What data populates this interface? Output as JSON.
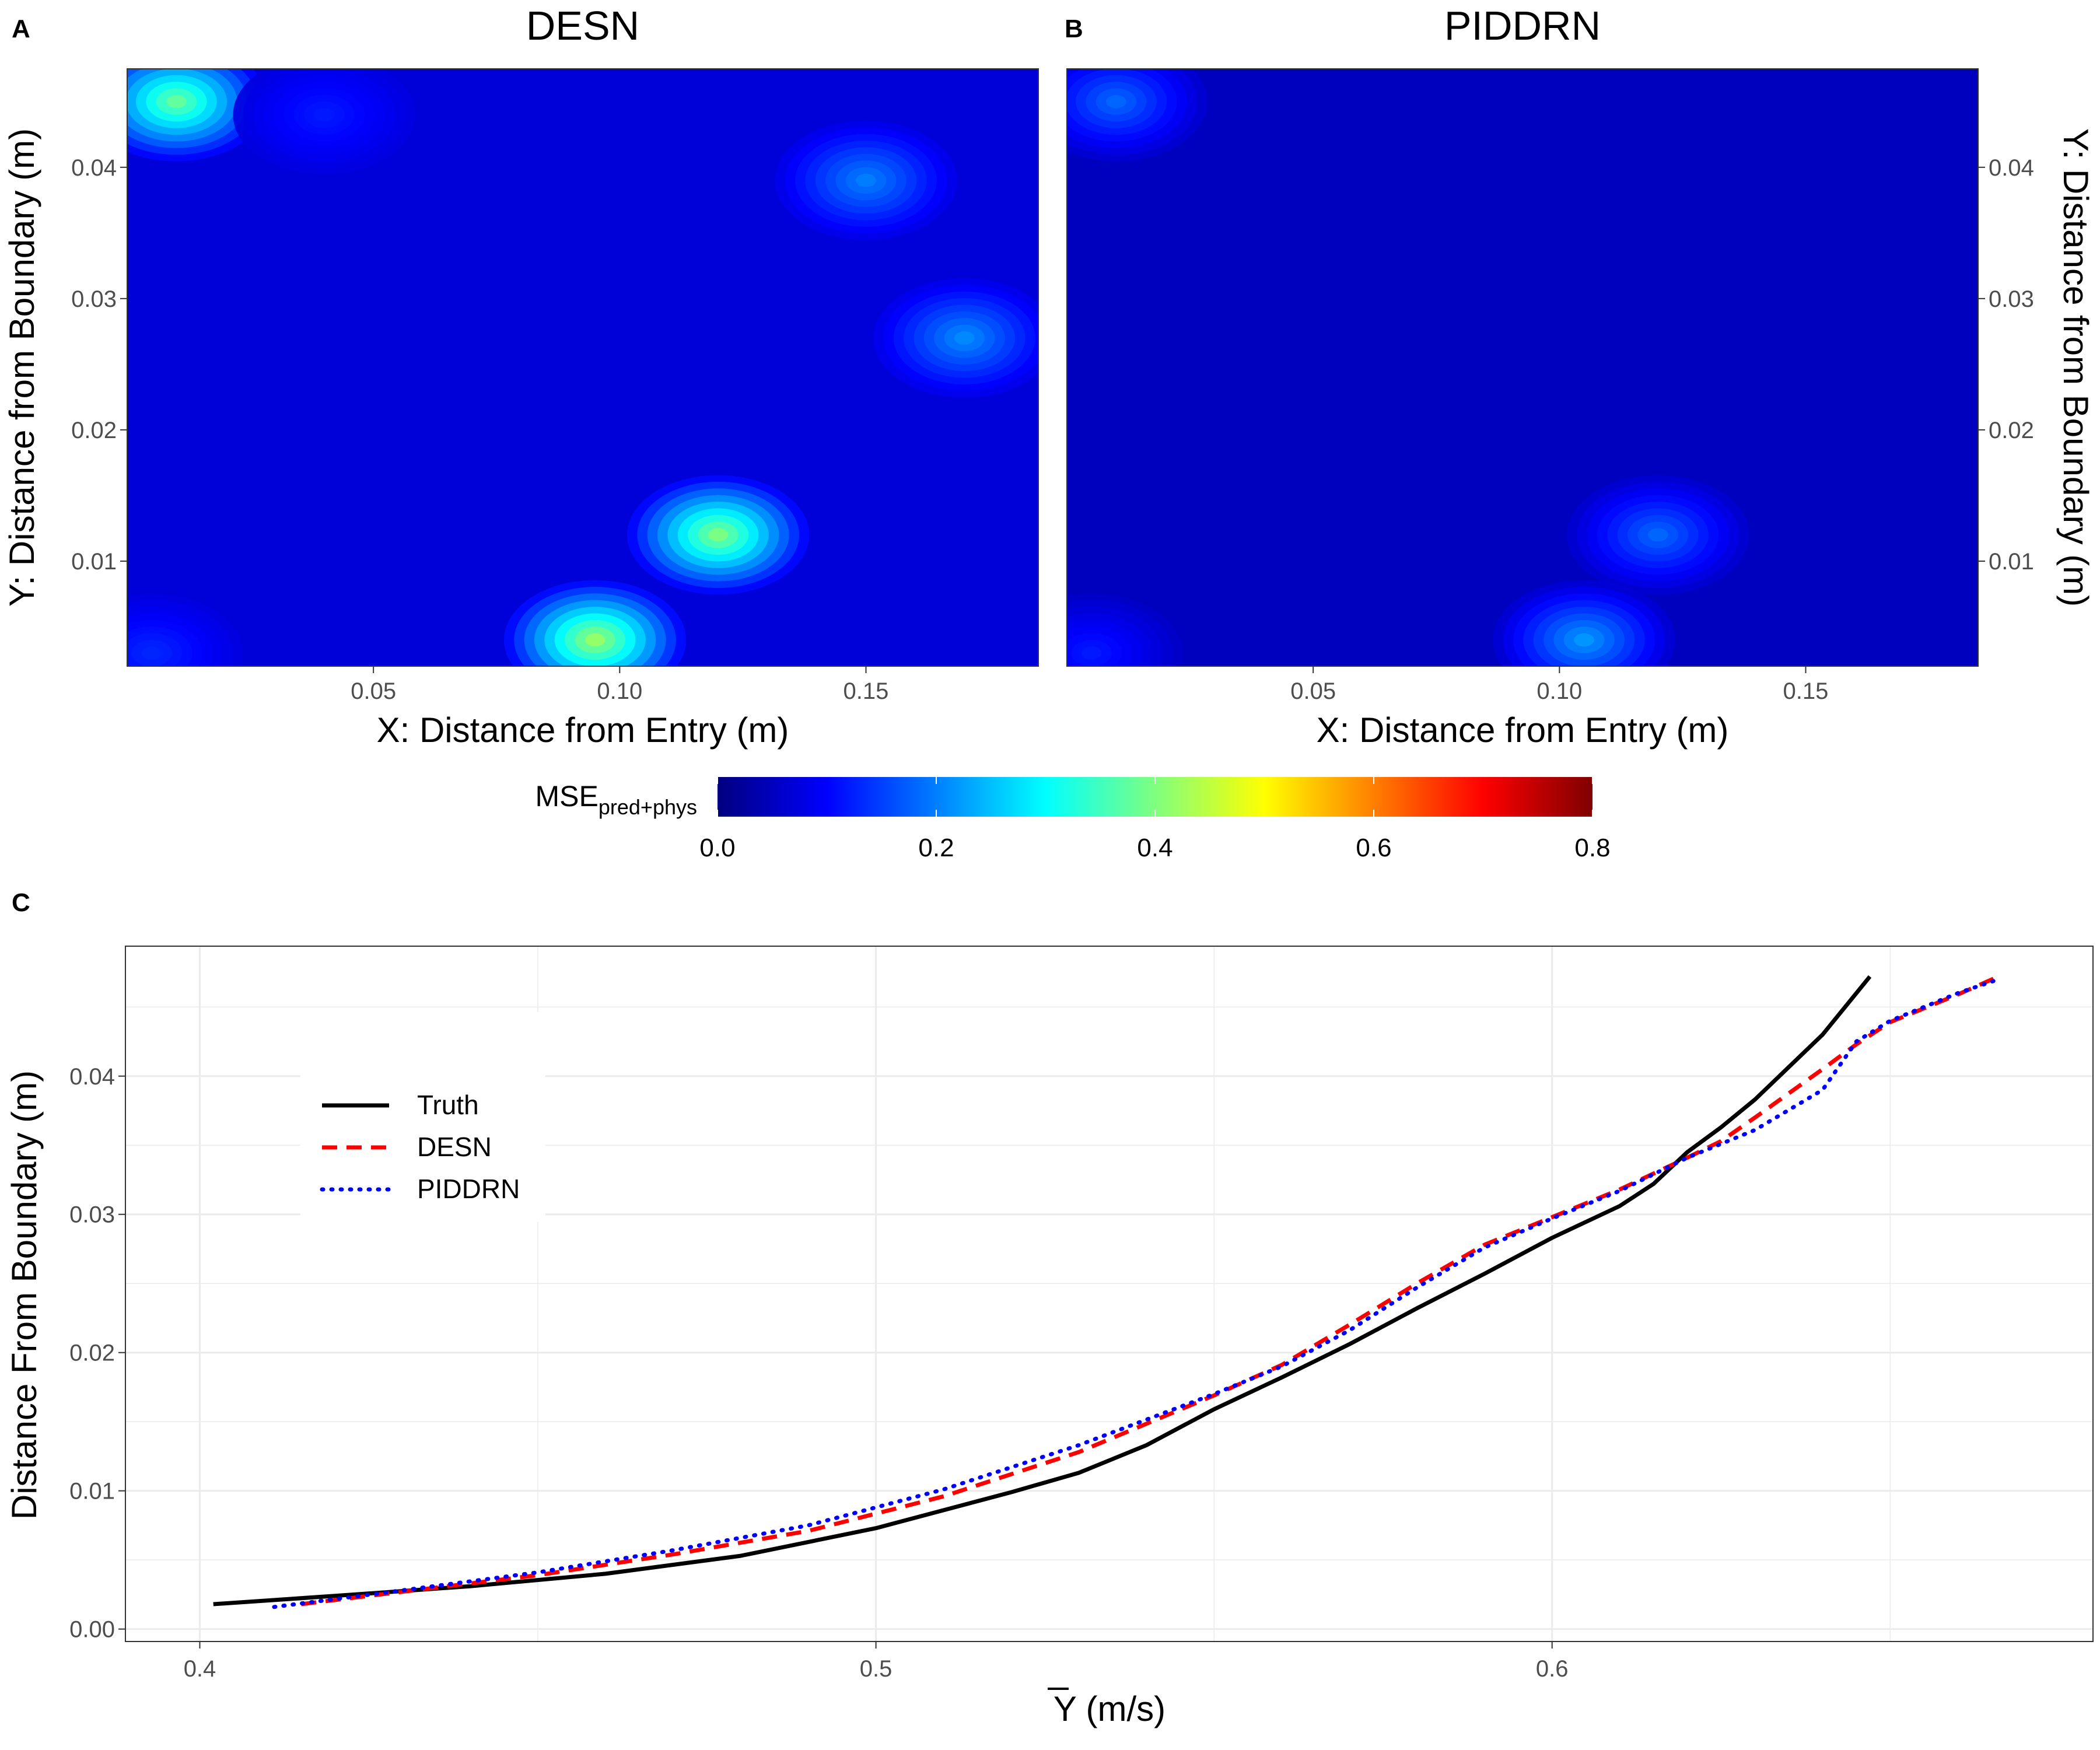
{
  "colors": {
    "jet": [
      "#00007F",
      "#0000FF",
      "#007FFF",
      "#00FFFF",
      "#7FFF7F",
      "#FFFF00",
      "#FF7F00",
      "#FF0000",
      "#7F0000"
    ],
    "truth": "#000000",
    "desn": "#FF0000",
    "piddrn": "#0000FF",
    "grid": "#EBEBEB"
  },
  "chart_data": [
    {
      "panel_label": "A",
      "type": "heatmap",
      "title": "DESN",
      "xlabel": "X: Distance from Entry (m)",
      "ylabel": "Y: Distance from Boundary (m)",
      "xlim": [
        0.0,
        0.185
      ],
      "ylim": [
        0.002,
        0.0475
      ],
      "x_ticks": [
        0.05,
        0.1,
        0.15
      ],
      "x_tick_labels": [
        "0.05",
        "0.10",
        "0.15"
      ],
      "y_ticks": [
        0.01,
        0.02,
        0.03,
        0.04
      ],
      "y_tick_labels": [
        "0.01",
        "0.02",
        "0.03",
        "0.04"
      ],
      "base_value": 0.07,
      "hotspots": [
        {
          "x": 0.01,
          "y": 0.045,
          "value": 0.38
        },
        {
          "x": 0.04,
          "y": 0.044,
          "value": 0.12
        },
        {
          "x": 0.15,
          "y": 0.039,
          "value": 0.2
        },
        {
          "x": 0.17,
          "y": 0.027,
          "value": 0.21
        },
        {
          "x": 0.12,
          "y": 0.012,
          "value": 0.4
        },
        {
          "x": 0.095,
          "y": 0.004,
          "value": 0.42
        },
        {
          "x": 0.005,
          "y": 0.003,
          "value": 0.13
        }
      ]
    },
    {
      "panel_label": "B",
      "type": "heatmap",
      "title": "PIDDRN",
      "xlabel": "X: Distance from Entry (m)",
      "ylabel": "Y: Distance from Boundary (m)",
      "xlim": [
        0.0,
        0.185
      ],
      "ylim": [
        0.002,
        0.0475
      ],
      "x_ticks": [
        0.05,
        0.1,
        0.15
      ],
      "x_tick_labels": [
        "0.05",
        "0.10",
        "0.15"
      ],
      "y_ticks": [
        0.01,
        0.02,
        0.03,
        0.04
      ],
      "y_tick_labels": [
        "0.01",
        "0.02",
        "0.03",
        "0.04"
      ],
      "base_value": 0.05,
      "hotspots": [
        {
          "x": 0.01,
          "y": 0.045,
          "value": 0.18
        },
        {
          "x": 0.12,
          "y": 0.012,
          "value": 0.18
        },
        {
          "x": 0.105,
          "y": 0.004,
          "value": 0.22
        },
        {
          "x": 0.005,
          "y": 0.003,
          "value": 0.12
        }
      ]
    },
    {
      "type": "colorbar",
      "title_main": "MSE",
      "title_sub": "pred+phys",
      "range": [
        0.0,
        0.8
      ],
      "ticks": [
        0.0,
        0.2,
        0.4,
        0.6,
        0.8
      ],
      "tick_labels": [
        "0.0",
        "0.2",
        "0.4",
        "0.6",
        "0.8"
      ]
    },
    {
      "panel_label": "C",
      "type": "line",
      "xlabel_symbol": "Y",
      "xlabel_unit": " (m/s)",
      "ylabel": "Distance From Boundary (m)",
      "xlim": [
        0.389,
        0.68
      ],
      "ylim": [
        -0.0009,
        0.0494
      ],
      "x_ticks": [
        0.4,
        0.5,
        0.6
      ],
      "x_tick_labels": [
        "0.4",
        "0.5",
        "0.6"
      ],
      "y_ticks": [
        0.0,
        0.01,
        0.02,
        0.03,
        0.04
      ],
      "y_tick_labels": [
        "0.00",
        "0.01",
        "0.02",
        "0.03",
        "0.04"
      ],
      "legend_position": "top-left",
      "series": [
        {
          "name": "Truth",
          "x": [
            0.402,
            0.42,
            0.44,
            0.46,
            0.48,
            0.5,
            0.52,
            0.53,
            0.54,
            0.55,
            0.56,
            0.57,
            0.58,
            0.59,
            0.6,
            0.61,
            0.615,
            0.62,
            0.625,
            0.63,
            0.64,
            0.647
          ],
          "y": [
            0.0018,
            0.0024,
            0.0031,
            0.004,
            0.0053,
            0.0073,
            0.0099,
            0.0113,
            0.0133,
            0.0159,
            0.0182,
            0.0206,
            0.0232,
            0.0257,
            0.0283,
            0.0306,
            0.0322,
            0.0345,
            0.0363,
            0.0383,
            0.043,
            0.0472
          ]
        },
        {
          "name": "DESN",
          "x": [
            0.415,
            0.43,
            0.45,
            0.47,
            0.49,
            0.51,
            0.53,
            0.55,
            0.56,
            0.57,
            0.58,
            0.59,
            0.6,
            0.61,
            0.62,
            0.625,
            0.63,
            0.64,
            0.645,
            0.65,
            0.66,
            0.666
          ],
          "y": [
            0.0018,
            0.0027,
            0.0039,
            0.0054,
            0.0071,
            0.0096,
            0.0128,
            0.0169,
            0.0191,
            0.022,
            0.025,
            0.0278,
            0.0298,
            0.0318,
            0.0341,
            0.0353,
            0.037,
            0.0405,
            0.0423,
            0.0439,
            0.0459,
            0.0472
          ]
        },
        {
          "name": "PIDDRN",
          "x": [
            0.411,
            0.43,
            0.45,
            0.47,
            0.49,
            0.51,
            0.53,
            0.55,
            0.56,
            0.57,
            0.58,
            0.59,
            0.6,
            0.61,
            0.62,
            0.63,
            0.64,
            0.645,
            0.65,
            0.66,
            0.666
          ],
          "y": [
            0.0016,
            0.0028,
            0.0041,
            0.0057,
            0.0075,
            0.0101,
            0.0133,
            0.017,
            0.019,
            0.0216,
            0.0247,
            0.0276,
            0.0297,
            0.0317,
            0.0341,
            0.0361,
            0.039,
            0.0425,
            0.044,
            0.046,
            0.047
          ]
        }
      ]
    }
  ]
}
